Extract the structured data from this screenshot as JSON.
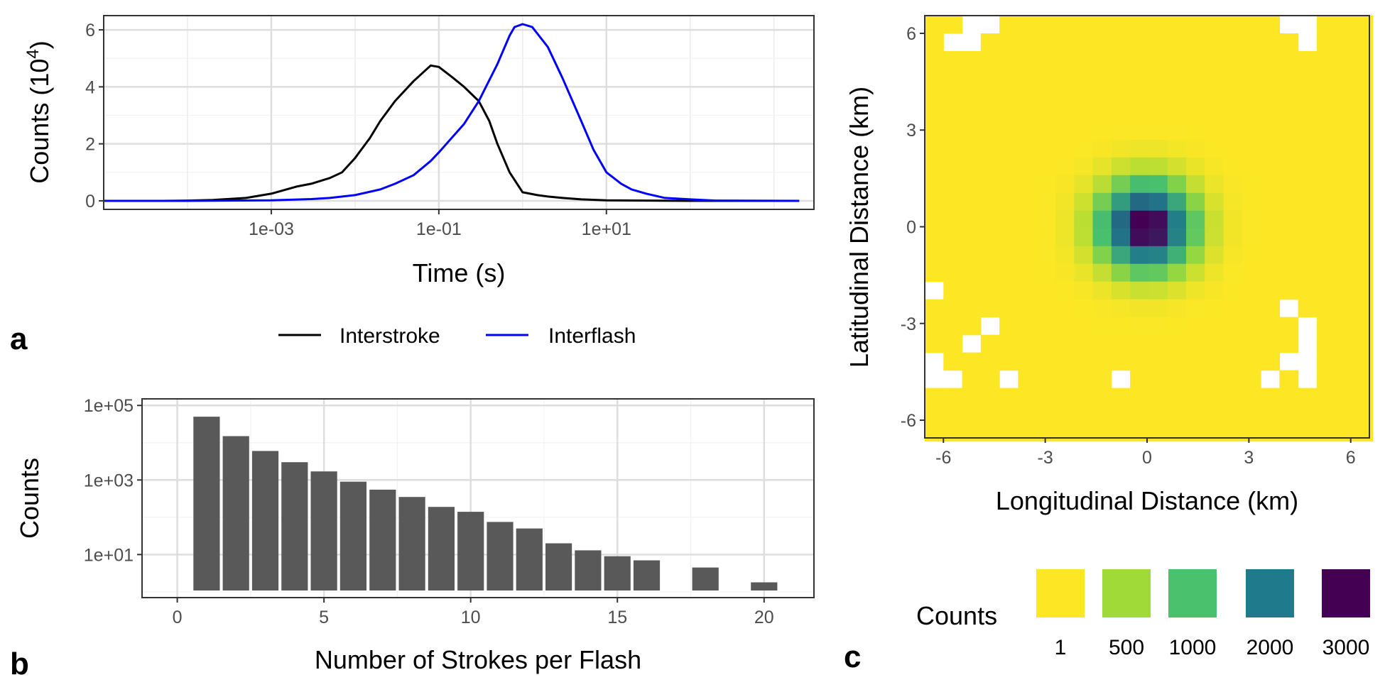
{
  "panels": {
    "a": {
      "label": "a"
    },
    "b": {
      "label": "b"
    },
    "c": {
      "label": "c"
    }
  },
  "chart_data": [
    {
      "panel": "a",
      "type": "line",
      "xlabel": "Time (s)",
      "ylabel_base": "Counts (10",
      "ylabel_exp": "4",
      "ylabel_close": ")",
      "xscale": "log10",
      "xlim": [
        1e-05,
        3000
      ],
      "ylim": [
        -0.3,
        6.5
      ],
      "xticks": [
        {
          "value": 0.001,
          "label": "1e-03"
        },
        {
          "value": 0.1,
          "label": "1e-01"
        },
        {
          "value": 10,
          "label": "1e+01"
        }
      ],
      "yticks": [
        {
          "value": 0,
          "label": "0"
        },
        {
          "value": 2,
          "label": "2"
        },
        {
          "value": 4,
          "label": "4"
        },
        {
          "value": 6,
          "label": "6"
        }
      ],
      "grid": true,
      "legend_position": "bottom",
      "series": [
        {
          "name": "Interstroke",
          "color": "#000000",
          "points": [
            [
              1e-05,
              0
            ],
            [
              5e-05,
              0
            ],
            [
              0.0001,
              0.01
            ],
            [
              0.0002,
              0.03
            ],
            [
              0.0005,
              0.1
            ],
            [
              0.001,
              0.25
            ],
            [
              0.002,
              0.5
            ],
            [
              0.003,
              0.6
            ],
            [
              0.005,
              0.8
            ],
            [
              0.007,
              1.0
            ],
            [
              0.01,
              1.5
            ],
            [
              0.015,
              2.2
            ],
            [
              0.02,
              2.8
            ],
            [
              0.03,
              3.5
            ],
            [
              0.05,
              4.2
            ],
            [
              0.08,
              4.75
            ],
            [
              0.1,
              4.7
            ],
            [
              0.15,
              4.3
            ],
            [
              0.2,
              4.0
            ],
            [
              0.3,
              3.5
            ],
            [
              0.4,
              2.8
            ],
            [
              0.5,
              2.0
            ],
            [
              0.7,
              1.0
            ],
            [
              1,
              0.3
            ],
            [
              1.5,
              0.2
            ],
            [
              2,
              0.15
            ],
            [
              3,
              0.1
            ],
            [
              5,
              0.05
            ],
            [
              10,
              0.02
            ],
            [
              100,
              0
            ],
            [
              2000,
              0
            ]
          ]
        },
        {
          "name": "Interflash",
          "color": "#0000ff",
          "points": [
            [
              1e-05,
              0
            ],
            [
              0.0001,
              0
            ],
            [
              0.001,
              0.02
            ],
            [
              0.003,
              0.06
            ],
            [
              0.005,
              0.1
            ],
            [
              0.01,
              0.2
            ],
            [
              0.02,
              0.4
            ],
            [
              0.03,
              0.6
            ],
            [
              0.05,
              0.9
            ],
            [
              0.08,
              1.4
            ],
            [
              0.1,
              1.7
            ],
            [
              0.2,
              2.7
            ],
            [
              0.3,
              3.5
            ],
            [
              0.5,
              4.8
            ],
            [
              0.7,
              5.8
            ],
            [
              0.8,
              6.1
            ],
            [
              1,
              6.2
            ],
            [
              1.3,
              6.1
            ],
            [
              2,
              5.4
            ],
            [
              3,
              4.3
            ],
            [
              5,
              2.8
            ],
            [
              7,
              1.8
            ],
            [
              10,
              1.0
            ],
            [
              15,
              0.6
            ],
            [
              20,
              0.4
            ],
            [
              30,
              0.25
            ],
            [
              50,
              0.1
            ],
            [
              100,
              0.05
            ],
            [
              200,
              0.01
            ],
            [
              2000,
              0
            ]
          ]
        }
      ]
    },
    {
      "panel": "b",
      "type": "bar",
      "xlabel": "Number of Strokes per Flash",
      "ylabel": "Counts",
      "yscale": "log10",
      "xlim": [
        -1.2,
        21.7
      ],
      "ylim": [
        0.7,
        150000
      ],
      "xticks": [
        {
          "value": 0,
          "label": "0"
        },
        {
          "value": 5,
          "label": "5"
        },
        {
          "value": 10,
          "label": "10"
        },
        {
          "value": 15,
          "label": "15"
        },
        {
          "value": 20,
          "label": "20"
        }
      ],
      "yticks": [
        {
          "value": 10,
          "label": "1e+01"
        },
        {
          "value": 1000,
          "label": "1e+03"
        },
        {
          "value": 100000,
          "label": "1e+05"
        }
      ],
      "grid": true,
      "bar_color": "#595959",
      "x": [
        1,
        2,
        3,
        4,
        5,
        6,
        7,
        8,
        9,
        10,
        11,
        12,
        13,
        14,
        15,
        16,
        18,
        20
      ],
      "values": [
        50000,
        15000,
        6000,
        3000,
        1700,
        900,
        550,
        350,
        190,
        140,
        75,
        50,
        20,
        13,
        9,
        7,
        4.5,
        1.8
      ]
    },
    {
      "panel": "c",
      "type": "heatmap",
      "xlabel": "Longitudinal Distance (km)",
      "ylabel": "Latitudinal Distance (km)",
      "xlim": [
        -6.55,
        6.55
      ],
      "ylim": [
        -6.55,
        6.55
      ],
      "cell_km": 0.55,
      "xticks": [
        {
          "value": -6,
          "label": "-6"
        },
        {
          "value": -3,
          "label": "-3"
        },
        {
          "value": 0,
          "label": "0"
        },
        {
          "value": 3,
          "label": "3"
        },
        {
          "value": 6,
          "label": "6"
        }
      ],
      "yticks": [
        {
          "value": -6,
          "label": "-6"
        },
        {
          "value": -3,
          "label": "-3"
        },
        {
          "value": 0,
          "label": "0"
        },
        {
          "value": 3,
          "label": "3"
        },
        {
          "value": 6,
          "label": "6"
        }
      ],
      "peak_count": 3200,
      "spread_km": 0.9,
      "empty_cells_rowcol": [
        [
          0,
          2
        ],
        [
          0,
          3
        ],
        [
          1,
          1
        ],
        [
          1,
          2
        ],
        [
          0,
          19
        ],
        [
          0,
          20
        ],
        [
          1,
          20
        ],
        [
          15,
          0
        ],
        [
          16,
          19
        ],
        [
          17,
          3
        ],
        [
          18,
          2
        ],
        [
          19,
          0
        ],
        [
          19,
          19
        ],
        [
          19,
          20
        ],
        [
          20,
          0
        ],
        [
          20,
          1
        ],
        [
          20,
          4
        ],
        [
          20,
          10
        ],
        [
          20,
          18
        ],
        [
          20,
          20
        ],
        [
          18,
          20
        ],
        [
          17,
          20
        ]
      ],
      "legend": {
        "title": "Counts",
        "items": [
          {
            "label": "1",
            "color": "#fde725"
          },
          {
            "label": "500",
            "color": "#a0da39"
          },
          {
            "label": "1000",
            "color": "#4ac16d"
          },
          {
            "label": "2000",
            "color": "#1f7a8c"
          },
          {
            "label": "3000",
            "color": "#440154"
          }
        ]
      }
    }
  ]
}
